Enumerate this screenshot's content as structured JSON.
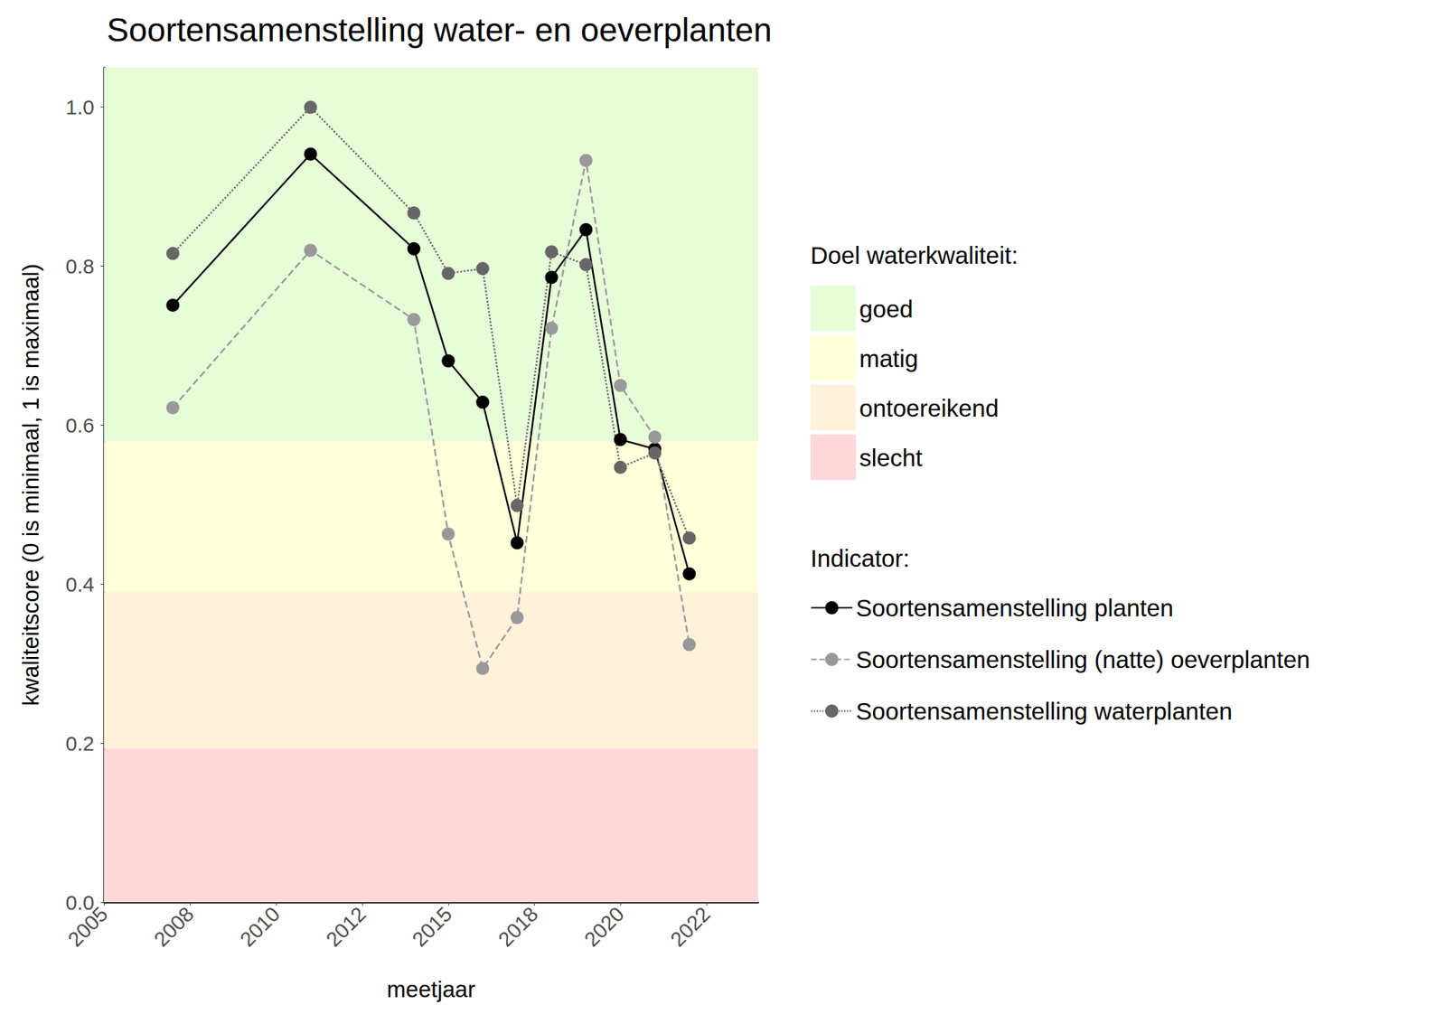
{
  "chart_data": {
    "type": "line",
    "title": "Soortensamenstelling water- en oeverplanten",
    "x_label": "meetjaar",
    "y_label": "kwaliteitscore (0 is minimaal, 1 is maximaal)",
    "x": [
      2007,
      2011,
      2014,
      2015,
      2016,
      2017,
      2018,
      2019,
      2020,
      2021,
      2022
    ],
    "series": [
      {
        "name": "Soortensamenstelling planten",
        "color": "#000000",
        "line_style": "solid",
        "marker": "circle",
        "values": [
          0.751,
          0.941,
          0.822,
          0.681,
          0.629,
          0.452,
          0.786,
          0.846,
          0.582,
          0.57,
          0.413
        ]
      },
      {
        "name": "Soortensamenstelling (natte) oeverplanten",
        "color": "#999999",
        "line_style": "dashed",
        "marker": "circle",
        "values": [
          0.622,
          0.82,
          0.733,
          0.463,
          0.294,
          0.358,
          0.722,
          0.933,
          0.65,
          0.585,
          0.324
        ]
      },
      {
        "name": "Soortensamenstelling waterplanten",
        "color": "#666666",
        "line_style": "dotted",
        "marker": "circle",
        "values": [
          0.816,
          1.0,
          0.867,
          0.791,
          0.797,
          0.499,
          0.818,
          0.802,
          0.547,
          0.565,
          0.458
        ]
      }
    ],
    "xlim": [
      2005,
      2024
    ],
    "xticks": [
      {
        "value": 2005,
        "label": "2005"
      },
      {
        "value": 2007.5,
        "label": "2008"
      },
      {
        "value": 2010,
        "label": "2010"
      },
      {
        "value": 2012.5,
        "label": "2012"
      },
      {
        "value": 2015,
        "label": "2015"
      },
      {
        "value": 2017.5,
        "label": "2018"
      },
      {
        "value": 2020,
        "label": "2020"
      },
      {
        "value": 2022.5,
        "label": "2022"
      }
    ],
    "ylim": [
      0,
      1.05
    ],
    "yticks": [
      {
        "value": 0,
        "label": "0.0"
      },
      0.2,
      0.4,
      0.6,
      0.8,
      {
        "value": 1,
        "label": "1.0"
      }
    ],
    "grid": true,
    "legend": "right",
    "band_legend_title": "Doel waterkwaliteit:",
    "series_legend_title": "Indicator:",
    "bands": [
      {
        "name": "goed",
        "from": 0.58,
        "to": 1.05,
        "color": "#E6FDD8"
      },
      {
        "name": "matig",
        "from": 0.39,
        "to": 0.58,
        "color": "#FFFFDA"
      },
      {
        "name": "ontoereikend",
        "from": 0.193,
        "to": 0.39,
        "color": "#FFF1DA"
      },
      {
        "name": "slecht",
        "from": 0,
        "to": 0.193,
        "color": "#FFD9DA"
      }
    ]
  }
}
